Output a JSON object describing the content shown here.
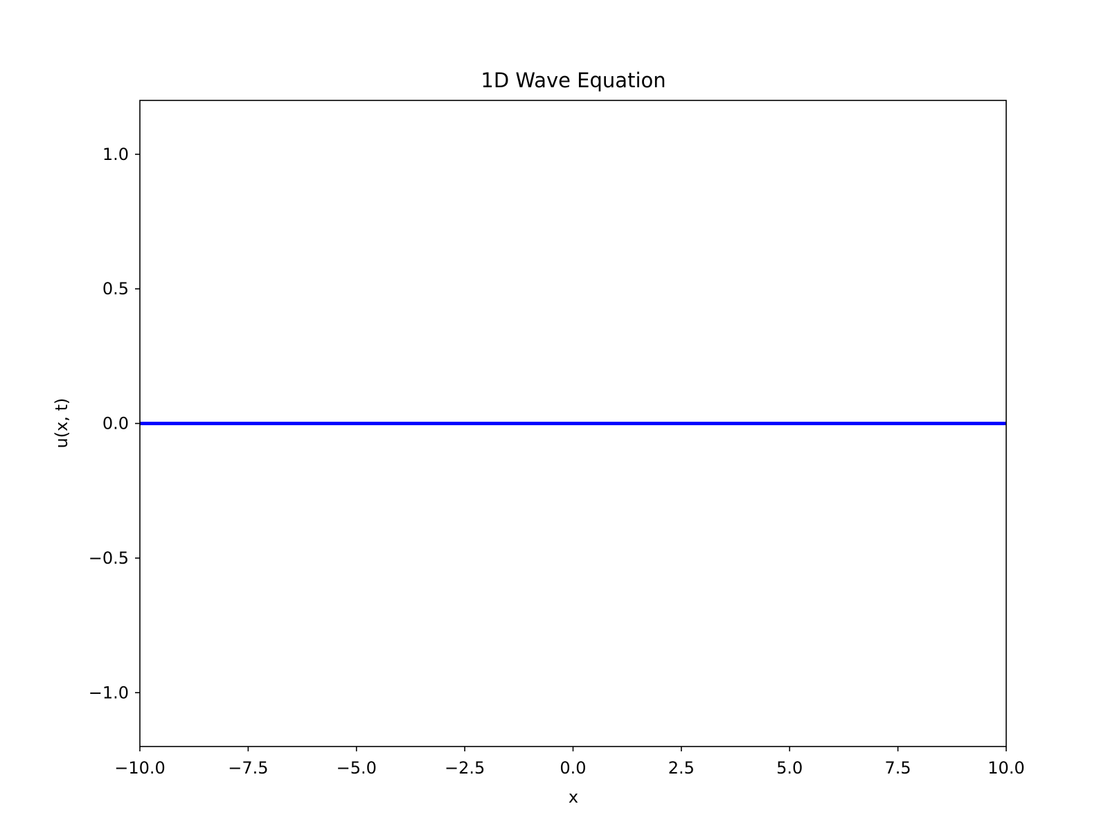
{
  "chart_data": {
    "type": "line",
    "title": "1D Wave Equation",
    "xlabel": "x",
    "ylabel": "u(x, t)",
    "xlim": [
      -10.0,
      10.0
    ],
    "ylim": [
      -1.2,
      1.2
    ],
    "x_ticks": [
      -10.0,
      -7.5,
      -5.0,
      -2.5,
      0.0,
      2.5,
      5.0,
      7.5,
      10.0
    ],
    "x_tick_labels": [
      "−10.0",
      "−7.5",
      "−5.0",
      "−2.5",
      "0.0",
      "2.5",
      "5.0",
      "7.5",
      "10.0"
    ],
    "y_ticks": [
      -1.0,
      -0.5,
      0.0,
      0.5,
      1.0
    ],
    "y_tick_labels": [
      "−1.0",
      "−0.5",
      "0.0",
      "0.5",
      "1.0"
    ],
    "grid": false,
    "series": [
      {
        "color": "#0000ff",
        "x": [
          -10.0,
          -7.5,
          -5.0,
          -2.5,
          0.0,
          2.5,
          5.0,
          7.5,
          10.0
        ],
        "y": [
          0.0,
          0.0,
          0.0,
          0.0,
          0.0,
          0.0,
          0.0,
          0.0,
          0.0
        ]
      }
    ]
  }
}
